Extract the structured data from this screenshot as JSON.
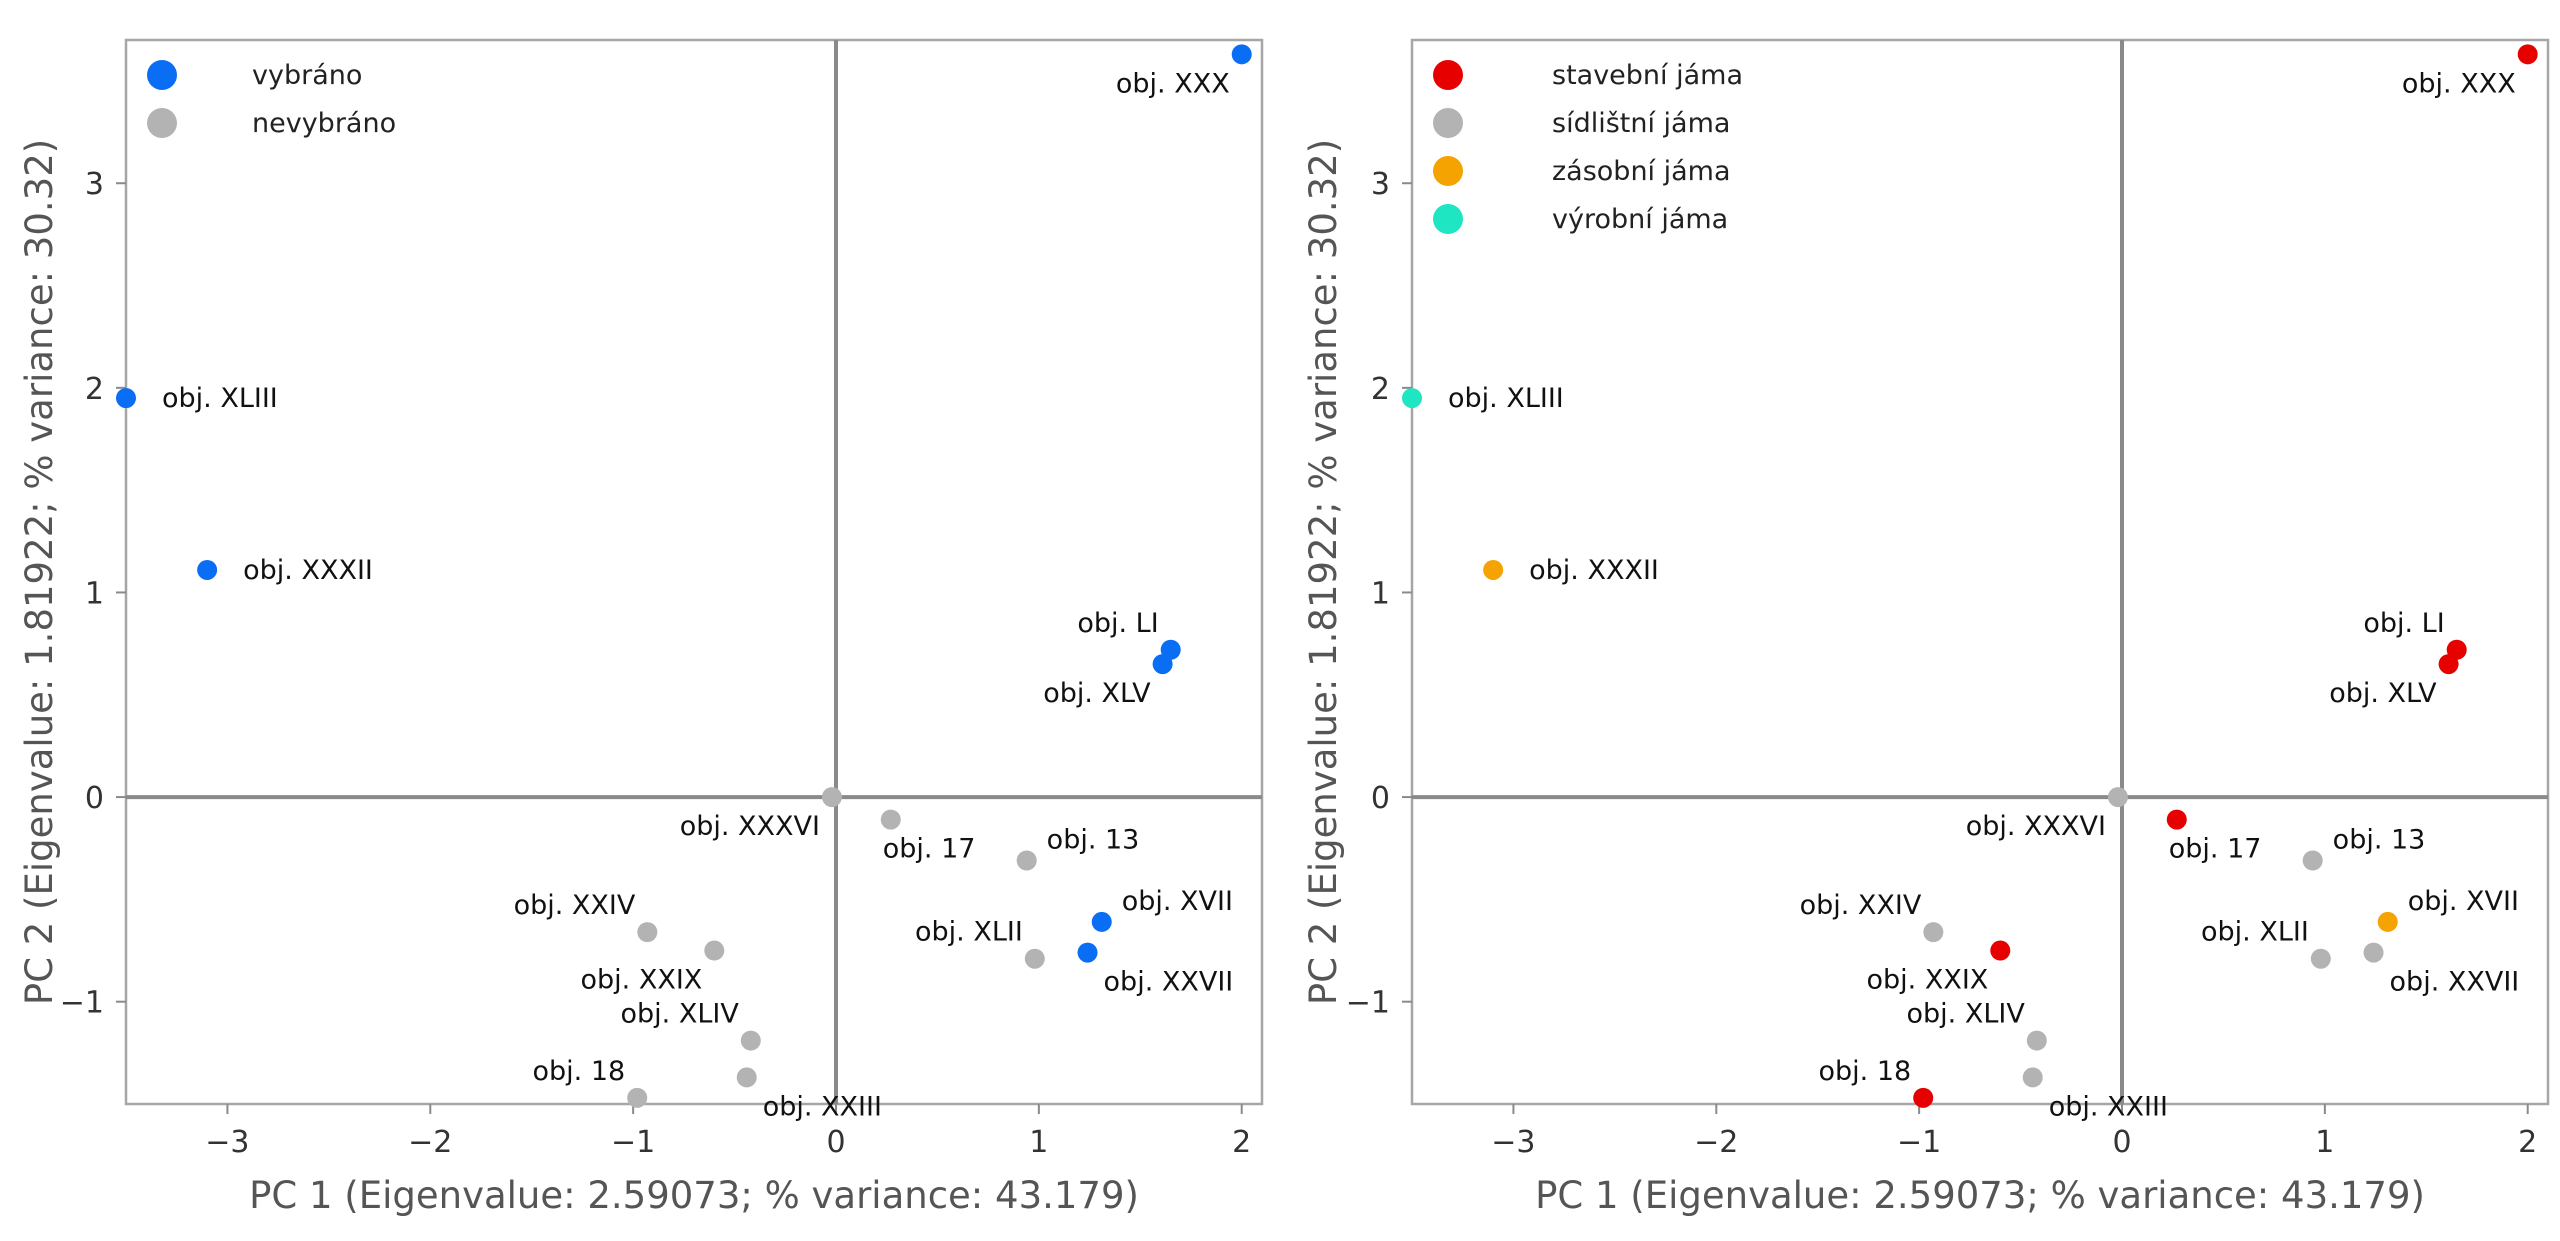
{
  "chart_data": [
    {
      "type": "scatter",
      "xlabel": "PC 1 (Eigenvalue: 2.59073; % variance: 43.179)",
      "ylabel": "PC 2 (Eigenvalue: 1.81922; % variance: 30.32)",
      "xlim": [
        -3.5,
        2.1
      ],
      "ylim": [
        -1.5,
        3.7
      ],
      "xticks": [
        -3,
        -2,
        -1,
        0,
        1,
        2
      ],
      "yticks": [
        -1,
        0,
        1,
        2,
        3
      ],
      "grid": false,
      "zero_lines": true,
      "legend_position": "top-left",
      "categories": [
        {
          "key": "vybrano",
          "name": "vybráno",
          "color": "#0a6ef5"
        },
        {
          "key": "nevybrano",
          "name": "nevybráno",
          "color": "#b3b3b3"
        }
      ],
      "points": [
        {
          "label": "obj. XXX",
          "x": 2.0,
          "y": 3.63,
          "cat": "vybrano",
          "pos": "bl"
        },
        {
          "label": "obj. XLIII",
          "x": -3.5,
          "y": 1.95,
          "cat": "vybrano",
          "pos": "r"
        },
        {
          "label": "obj. XXXII",
          "x": -3.1,
          "y": 1.11,
          "cat": "vybrano",
          "pos": "r"
        },
        {
          "label": "obj. LI",
          "x": 1.65,
          "y": 0.72,
          "cat": "vybrano",
          "pos": "tl"
        },
        {
          "label": "obj. XLV",
          "x": 1.61,
          "y": 0.65,
          "cat": "vybrano",
          "pos": "bl"
        },
        {
          "label": "obj. XXXVI",
          "x": -0.02,
          "y": 0.0,
          "cat": "nevybrano",
          "pos": "bl"
        },
        {
          "label": "obj. 17",
          "x": 0.27,
          "y": -0.11,
          "cat": "nevybrano",
          "pos": "b"
        },
        {
          "label": "obj. 13",
          "x": 0.94,
          "y": -0.31,
          "cat": "nevybrano",
          "pos": "tr"
        },
        {
          "label": "obj. XVII",
          "x": 1.31,
          "y": -0.61,
          "cat": "vybrano",
          "pos": "tr"
        },
        {
          "label": "obj. XLII",
          "x": 0.98,
          "y": -0.79,
          "cat": "nevybrano",
          "pos": "tl"
        },
        {
          "label": "obj. XXVII",
          "x": 1.24,
          "y": -0.76,
          "cat": "vybrano",
          "pos": "br"
        },
        {
          "label": "obj. XXIV",
          "x": -0.93,
          "y": -0.66,
          "cat": "nevybrano",
          "pos": "tl"
        },
        {
          "label": "obj. XXIX",
          "x": -0.6,
          "y": -0.75,
          "cat": "nevybrano",
          "pos": "bl"
        },
        {
          "label": "obj. XLIV",
          "x": -0.42,
          "y": -1.19,
          "cat": "nevybrano",
          "pos": "tl"
        },
        {
          "label": "obj. 18",
          "x": -0.98,
          "y": -1.47,
          "cat": "nevybrano",
          "pos": "tl"
        },
        {
          "label": "obj. XXIII",
          "x": -0.44,
          "y": -1.37,
          "cat": "nevybrano",
          "pos": "br"
        }
      ]
    },
    {
      "type": "scatter",
      "xlabel": "PC 1 (Eigenvalue: 2.59073; % variance: 43.179)",
      "ylabel": "PC 2 (Eigenvalue: 1.81922; % variance: 30.32)",
      "xlim": [
        -3.5,
        2.1
      ],
      "ylim": [
        -1.5,
        3.7
      ],
      "xticks": [
        -3,
        -2,
        -1,
        0,
        1,
        2
      ],
      "yticks": [
        -1,
        0,
        1,
        2,
        3
      ],
      "grid": false,
      "zero_lines": true,
      "legend_position": "top-left",
      "categories": [
        {
          "key": "stavebni",
          "name": "stavební jáma",
          "color": "#e60000"
        },
        {
          "key": "sidlistni",
          "name": "sídlištní jáma",
          "color": "#b3b3b3"
        },
        {
          "key": "zasobni",
          "name": "zásobní jáma",
          "color": "#f5a300"
        },
        {
          "key": "vyrobni",
          "name": "výrobní jáma",
          "color": "#1ee6c3"
        }
      ],
      "points": [
        {
          "label": "obj. XXX",
          "x": 2.0,
          "y": 3.63,
          "cat": "stavebni",
          "pos": "bl"
        },
        {
          "label": "obj. XLIII",
          "x": -3.5,
          "y": 1.95,
          "cat": "vyrobni",
          "pos": "r"
        },
        {
          "label": "obj. XXXII",
          "x": -3.1,
          "y": 1.11,
          "cat": "zasobni",
          "pos": "r"
        },
        {
          "label": "obj. LI",
          "x": 1.65,
          "y": 0.72,
          "cat": "stavebni",
          "pos": "tl"
        },
        {
          "label": "obj. XLV",
          "x": 1.61,
          "y": 0.65,
          "cat": "stavebni",
          "pos": "bl"
        },
        {
          "label": "obj. XXXVI",
          "x": -0.02,
          "y": 0.0,
          "cat": "sidlistni",
          "pos": "bl"
        },
        {
          "label": "obj. 17",
          "x": 0.27,
          "y": -0.11,
          "cat": "stavebni",
          "pos": "b"
        },
        {
          "label": "obj. 13",
          "x": 0.94,
          "y": -0.31,
          "cat": "sidlistni",
          "pos": "tr"
        },
        {
          "label": "obj. XVII",
          "x": 1.31,
          "y": -0.61,
          "cat": "zasobni",
          "pos": "tr"
        },
        {
          "label": "obj. XLII",
          "x": 0.98,
          "y": -0.79,
          "cat": "sidlistni",
          "pos": "tl"
        },
        {
          "label": "obj. XXVII",
          "x": 1.24,
          "y": -0.76,
          "cat": "sidlistni",
          "pos": "br"
        },
        {
          "label": "obj. XXIV",
          "x": -0.93,
          "y": -0.66,
          "cat": "sidlistni",
          "pos": "tl"
        },
        {
          "label": "obj. XXIX",
          "x": -0.6,
          "y": -0.75,
          "cat": "stavebni",
          "pos": "bl"
        },
        {
          "label": "obj. XLIV",
          "x": -0.42,
          "y": -1.19,
          "cat": "sidlistni",
          "pos": "tl"
        },
        {
          "label": "obj. 18",
          "x": -0.98,
          "y": -1.47,
          "cat": "stavebni",
          "pos": "tl"
        },
        {
          "label": "obj. XXIII",
          "x": -0.44,
          "y": -1.37,
          "cat": "sidlistni",
          "pos": "br"
        }
      ]
    }
  ]
}
